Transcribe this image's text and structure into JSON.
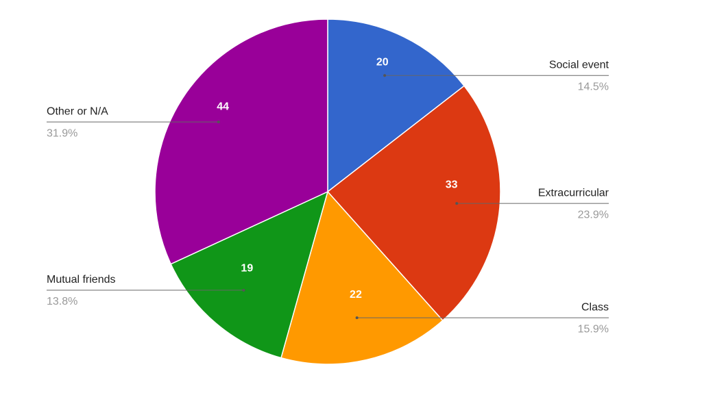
{
  "chart_data": {
    "type": "pie",
    "categories": [
      "Social event",
      "Extracurricular",
      "Class",
      "Mutual friends",
      "Other or N/A"
    ],
    "values": [
      20,
      33,
      22,
      19,
      44
    ],
    "percent_labels": [
      "14.5%",
      "23.9%",
      "15.9%",
      "13.8%",
      "31.9%"
    ],
    "colors": [
      "#3366cc",
      "#dc3912",
      "#ff9900",
      "#109618",
      "#990099"
    ]
  }
}
